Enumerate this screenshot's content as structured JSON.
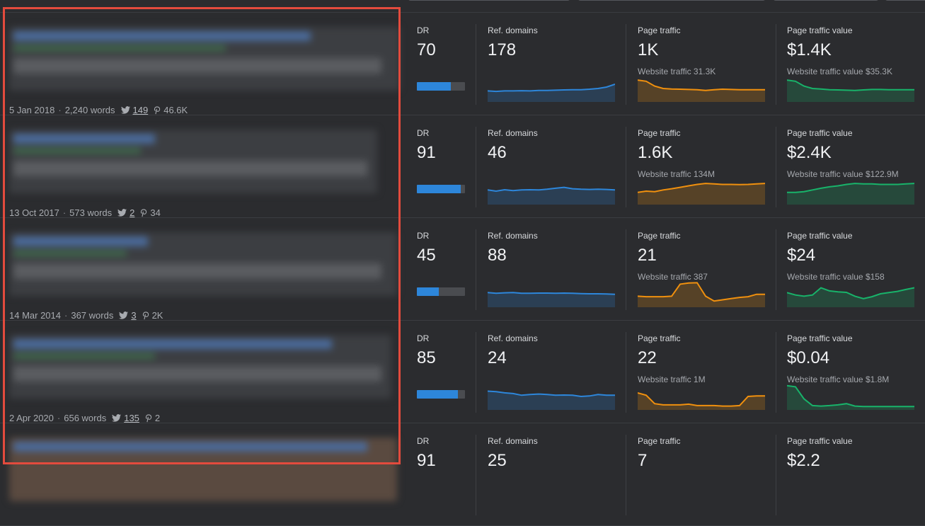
{
  "labels": {
    "dr": "DR",
    "ref_domains": "Ref. domains",
    "page_traffic": "Page traffic",
    "page_traffic_value": "Page traffic value"
  },
  "colors": {
    "ref_domains_line": "#2d86da",
    "page_traffic_line": "#f0900e",
    "page_traffic_value_line": "#18b36a",
    "highlight_border": "#e34b3d"
  },
  "rows": [
    {
      "date": "5 Jan 2018",
      "words": "2,240 words",
      "tweets": "149",
      "pins": "46.6K",
      "dr": "70",
      "dr_fraction": 0.7,
      "ref_domains": "178",
      "page_traffic": "1K",
      "website_traffic": "Website traffic 31.3K",
      "page_traffic_value": "$1.4K",
      "website_traffic_value": "Website traffic value $35.3K",
      "ref_trend": [
        0.4,
        0.38,
        0.4,
        0.4,
        0.41,
        0.4,
        0.42,
        0.42,
        0.43,
        0.44,
        0.45,
        0.45,
        0.47,
        0.5,
        0.56,
        0.68
      ],
      "traffic_trend": [
        0.85,
        0.8,
        0.6,
        0.5,
        0.48,
        0.47,
        0.46,
        0.45,
        0.42,
        0.45,
        0.47,
        0.46,
        0.45,
        0.45,
        0.45,
        0.45
      ],
      "value_trend": [
        0.85,
        0.8,
        0.6,
        0.5,
        0.48,
        0.45,
        0.44,
        0.43,
        0.42,
        0.44,
        0.46,
        0.46,
        0.45,
        0.45,
        0.45,
        0.45
      ]
    },
    {
      "date": "13 Oct 2017",
      "words": "573 words",
      "tweets": "2",
      "pins": "34",
      "dr": "91",
      "dr_fraction": 0.91,
      "ref_domains": "46",
      "page_traffic": "1.6K",
      "website_traffic": "Website traffic 134M",
      "page_traffic_value": "$2.4K",
      "website_traffic_value": "Website traffic value $122.9M",
      "ref_trend": [
        0.55,
        0.5,
        0.56,
        0.52,
        0.55,
        0.56,
        0.55,
        0.58,
        0.62,
        0.66,
        0.6,
        0.58,
        0.57,
        0.58,
        0.57,
        0.55
      ],
      "traffic_trend": [
        0.45,
        0.5,
        0.48,
        0.55,
        0.6,
        0.66,
        0.72,
        0.78,
        0.82,
        0.8,
        0.78,
        0.78,
        0.77,
        0.78,
        0.8,
        0.82
      ],
      "value_trend": [
        0.45,
        0.45,
        0.48,
        0.55,
        0.62,
        0.68,
        0.72,
        0.78,
        0.82,
        0.8,
        0.8,
        0.78,
        0.78,
        0.78,
        0.8,
        0.82
      ]
    },
    {
      "date": "14 Mar 2014",
      "words": "367 words",
      "tweets": "3",
      "pins": "2K",
      "dr": "45",
      "dr_fraction": 0.45,
      "ref_domains": "88",
      "page_traffic": "21",
      "website_traffic": "Website traffic 387",
      "page_traffic_value": "$24",
      "website_traffic_value": "Website traffic value $158",
      "ref_trend": [
        0.55,
        0.52,
        0.54,
        0.55,
        0.52,
        0.52,
        0.53,
        0.53,
        0.52,
        0.53,
        0.52,
        0.51,
        0.5,
        0.5,
        0.49,
        0.48
      ],
      "traffic_trend": [
        0.4,
        0.38,
        0.38,
        0.38,
        0.4,
        0.9,
        0.95,
        0.96,
        0.4,
        0.2,
        0.25,
        0.3,
        0.35,
        0.38,
        0.48,
        0.48
      ],
      "value_trend": [
        0.55,
        0.45,
        0.4,
        0.45,
        0.75,
        0.62,
        0.58,
        0.56,
        0.4,
        0.3,
        0.38,
        0.5,
        0.55,
        0.6,
        0.68,
        0.75
      ]
    },
    {
      "date": "2 Apr 2020",
      "words": "656 words",
      "tweets": "135",
      "pins": "2",
      "dr": "85",
      "dr_fraction": 0.85,
      "ref_domains": "24",
      "page_traffic": "22",
      "website_traffic": "Website traffic 1M",
      "page_traffic_value": "$0.04",
      "website_traffic_value": "Website traffic value $1.8M",
      "ref_trend": [
        0.72,
        0.7,
        0.65,
        0.62,
        0.55,
        0.58,
        0.6,
        0.58,
        0.55,
        0.56,
        0.55,
        0.5,
        0.52,
        0.58,
        0.55,
        0.55
      ],
      "traffic_trend": [
        0.65,
        0.55,
        0.2,
        0.15,
        0.15,
        0.15,
        0.18,
        0.12,
        0.12,
        0.12,
        0.1,
        0.1,
        0.12,
        0.5,
        0.52,
        0.52
      ],
      "value_trend": [
        0.95,
        0.9,
        0.4,
        0.12,
        0.1,
        0.12,
        0.15,
        0.2,
        0.1,
        0.08,
        0.08,
        0.08,
        0.08,
        0.08,
        0.08,
        0.08
      ]
    },
    {
      "dr": "91",
      "ref_domains": "25",
      "page_traffic": "7",
      "page_traffic_value": "$2.2"
    }
  ]
}
